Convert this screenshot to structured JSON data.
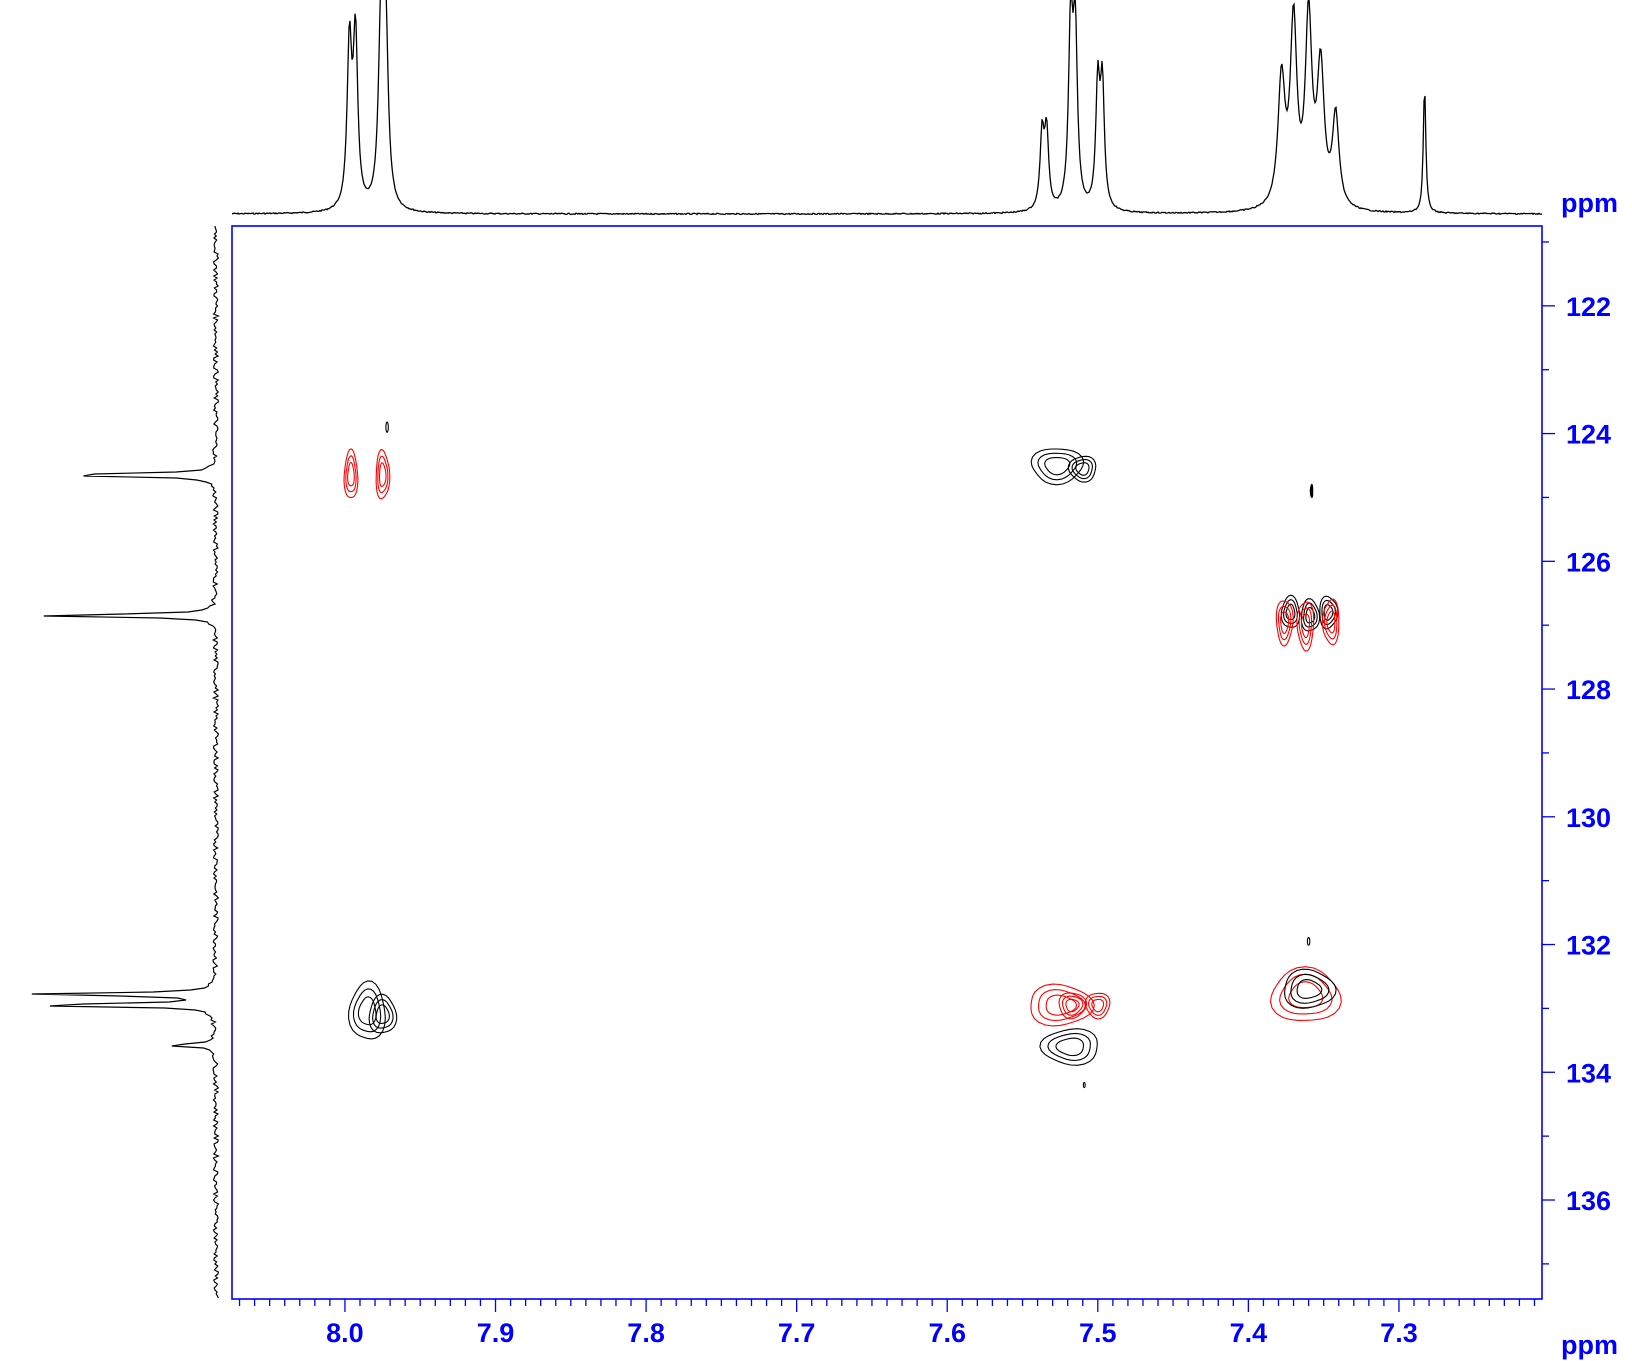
{
  "colors": {
    "axis": "#0000ff",
    "positive_contour": "#000000",
    "negative_contour": "#ff0000",
    "projection": "#000000",
    "background": "#ffffff"
  },
  "chart_data": {
    "type": "2D NMR contour plot (HSQC)",
    "grid": false,
    "x_axis": {
      "unit_label": "ppm",
      "reversed": true,
      "range": [
        8.075,
        7.205
      ],
      "ticks": [
        8.0,
        7.9,
        7.8,
        7.7,
        7.6,
        7.5,
        7.4,
        7.3
      ],
      "tick_labels": [
        "8.0",
        "7.9",
        "7.8",
        "7.7",
        "7.6",
        "7.5",
        "7.4",
        "7.3"
      ]
    },
    "y_axis": {
      "unit_label": "ppm",
      "position": "right",
      "range": [
        120.75,
        137.55
      ],
      "ticks": [
        122,
        124,
        126,
        128,
        130,
        132,
        134,
        136
      ],
      "tick_labels": [
        "122",
        "124",
        "126",
        "128",
        "130",
        "132",
        "134",
        "136"
      ]
    },
    "top_projection_1H": {
      "peaks": [
        {
          "shift": 7.997,
          "height": 0.81,
          "width": 0.0018
        },
        {
          "shift": 7.993,
          "height": 0.84,
          "width": 0.0018
        },
        {
          "shift": 7.976,
          "height": 0.9,
          "width": 0.002
        },
        {
          "shift": 7.973,
          "height": 0.88,
          "width": 0.002
        },
        {
          "shift": 7.537,
          "height": 0.37,
          "width": 0.0016
        },
        {
          "shift": 7.534,
          "height": 0.38,
          "width": 0.0016
        },
        {
          "shift": 7.518,
          "height": 0.89,
          "width": 0.0017
        },
        {
          "shift": 7.515,
          "height": 0.85,
          "width": 0.0017
        },
        {
          "shift": 7.5,
          "height": 0.6,
          "width": 0.0016
        },
        {
          "shift": 7.497,
          "height": 0.6,
          "width": 0.0016
        },
        {
          "shift": 7.378,
          "height": 0.63,
          "width": 0.0028
        },
        {
          "shift": 7.37,
          "height": 0.9,
          "width": 0.0026
        },
        {
          "shift": 7.36,
          "height": 0.92,
          "width": 0.0026
        },
        {
          "shift": 7.352,
          "height": 0.68,
          "width": 0.0028
        },
        {
          "shift": 7.342,
          "height": 0.45,
          "width": 0.0026
        },
        {
          "shift": 7.283,
          "height": 0.63,
          "width": 0.001
        }
      ]
    },
    "left_projection_13C": {
      "peaks": [
        {
          "shift": 124.65,
          "intensity": 0.88
        },
        {
          "shift": 126.85,
          "intensity": 0.9
        },
        {
          "shift": 132.78,
          "intensity": 0.94
        },
        {
          "shift": 132.95,
          "intensity": 1.0
        },
        {
          "shift": 133.58,
          "intensity": 0.25
        }
      ]
    },
    "cross_peaks": [
      {
        "x": 7.996,
        "y": 124.65,
        "sign": "negative",
        "rx": 0.0045,
        "ry": 0.38
      },
      {
        "x": 7.975,
        "y": 124.65,
        "sign": "negative",
        "rx": 0.0045,
        "ry": 0.38
      },
      {
        "x": 7.972,
        "y": 123.9,
        "sign": "positive",
        "rx": 0.0008,
        "ry": 0.08
      },
      {
        "x": 7.527,
        "y": 124.5,
        "sign": "positive",
        "rx": 0.017,
        "ry": 0.28
      },
      {
        "x": 7.51,
        "y": 124.55,
        "sign": "positive",
        "rx": 0.009,
        "ry": 0.2
      },
      {
        "x": 7.358,
        "y": 124.9,
        "sign": "positive",
        "rx": 0.0008,
        "ry": 0.1
      },
      {
        "x": 7.372,
        "y": 126.8,
        "sign": "positive",
        "rx": 0.006,
        "ry": 0.25
      },
      {
        "x": 7.359,
        "y": 126.85,
        "sign": "positive",
        "rx": 0.006,
        "ry": 0.25
      },
      {
        "x": 7.347,
        "y": 126.8,
        "sign": "positive",
        "rx": 0.006,
        "ry": 0.25
      },
      {
        "x": 7.376,
        "y": 126.95,
        "sign": "negative",
        "rx": 0.0055,
        "ry": 0.35
      },
      {
        "x": 7.362,
        "y": 127.0,
        "sign": "negative",
        "rx": 0.0055,
        "ry": 0.38
      },
      {
        "x": 7.345,
        "y": 126.95,
        "sign": "negative",
        "rx": 0.0055,
        "ry": 0.35
      },
      {
        "x": 7.985,
        "y": 133.05,
        "sign": "positive",
        "rx": 0.012,
        "ry": 0.45
      },
      {
        "x": 7.975,
        "y": 133.1,
        "sign": "positive",
        "rx": 0.009,
        "ry": 0.3
      },
      {
        "x": 7.525,
        "y": 132.95,
        "sign": "negative",
        "rx": 0.021,
        "ry": 0.32
      },
      {
        "x": 7.517,
        "y": 132.95,
        "sign": "negative",
        "rx": 0.009,
        "ry": 0.2
      },
      {
        "x": 7.5,
        "y": 132.95,
        "sign": "negative",
        "rx": 0.008,
        "ry": 0.2
      },
      {
        "x": 7.518,
        "y": 133.6,
        "sign": "positive",
        "rx": 0.019,
        "ry": 0.28
      },
      {
        "x": 7.509,
        "y": 134.2,
        "sign": "positive",
        "rx": 0.0006,
        "ry": 0.04
      },
      {
        "x": 7.362,
        "y": 132.8,
        "sign": "negative",
        "rx": 0.023,
        "ry": 0.42
      },
      {
        "x": 7.36,
        "y": 132.7,
        "sign": "positive",
        "rx": 0.017,
        "ry": 0.3
      },
      {
        "x": 7.36,
        "y": 131.95,
        "sign": "positive",
        "rx": 0.0008,
        "ry": 0.06
      }
    ]
  }
}
